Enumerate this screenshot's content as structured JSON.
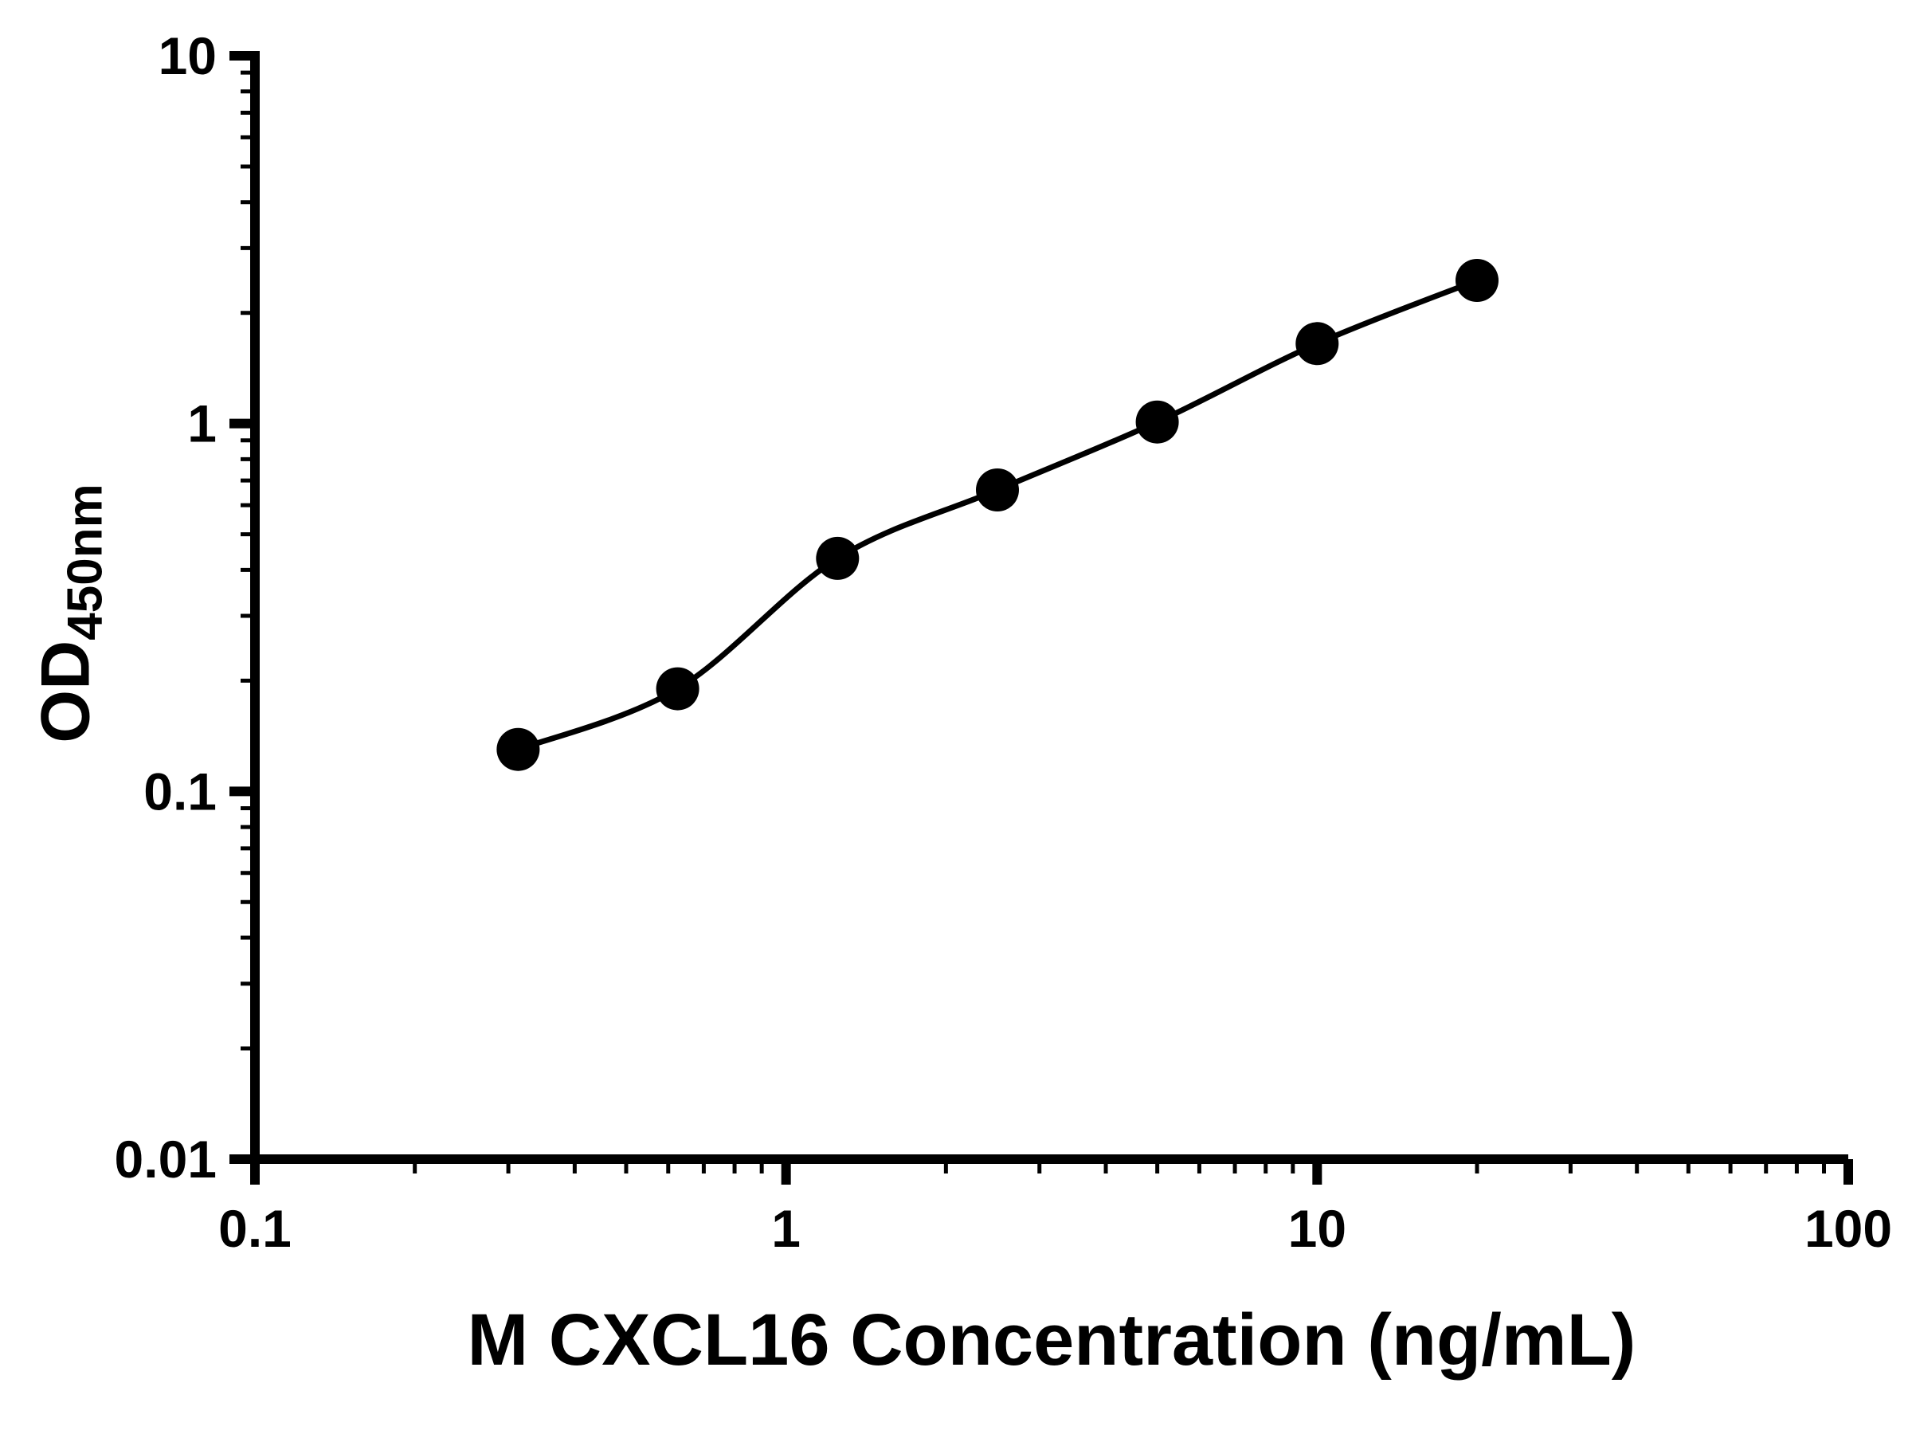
{
  "figure": {
    "background_color": "#ffffff",
    "foreground_color": "#000000"
  },
  "chart_data": {
    "type": "scatter",
    "title": "",
    "xlabel": "M CXCL16 Concentration (ng/mL)",
    "ylabel_main": "OD",
    "ylabel_sub": "450nm",
    "x_scale": "log",
    "y_scale": "log",
    "xlim": [
      0.1,
      100
    ],
    "ylim": [
      0.01,
      10
    ],
    "x_ticks": [
      0.1,
      1,
      10,
      100
    ],
    "x_tick_labels": [
      "0.1",
      "1",
      "10",
      "100"
    ],
    "y_ticks": [
      0.01,
      0.1,
      1,
      10
    ],
    "y_tick_labels": [
      "0.01",
      "0.1",
      "1",
      "10"
    ],
    "grid": false,
    "legend": "none",
    "series": [
      {
        "name": "standard-curve",
        "marker": "filled-circle",
        "color": "#000000",
        "curve": "smooth",
        "points": [
          {
            "x": 0.313,
            "y": 0.13
          },
          {
            "x": 0.625,
            "y": 0.19
          },
          {
            "x": 1.25,
            "y": 0.43
          },
          {
            "x": 2.5,
            "y": 0.66
          },
          {
            "x": 5,
            "y": 1.01
          },
          {
            "x": 10,
            "y": 1.65
          },
          {
            "x": 20,
            "y": 2.45
          }
        ]
      }
    ]
  }
}
